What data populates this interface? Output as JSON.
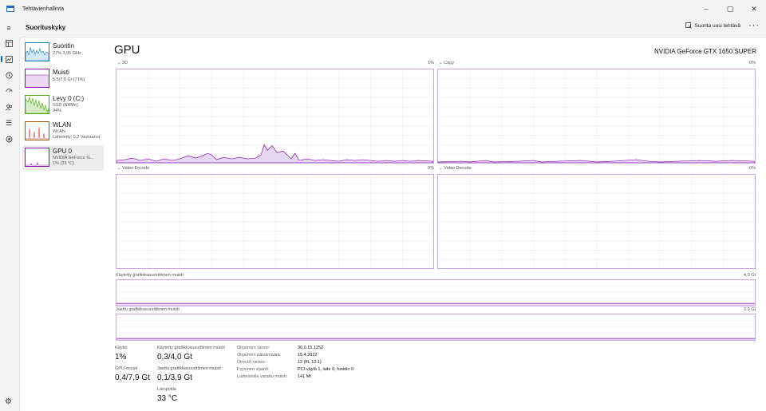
{
  "window": {
    "title": "Tehtävienhallinta",
    "minimize": "–",
    "maximize": "▢",
    "close": "✕"
  },
  "header": {
    "page_title": "Suorituskyky",
    "run_task_label": "Suorita uusi tehtävä",
    "more": "···"
  },
  "nav_icons": [
    "menu-icon",
    "processes-icon",
    "performance-icon",
    "app-history-icon",
    "startup-icon",
    "users-icon",
    "details-icon",
    "services-icon",
    "settings-icon"
  ],
  "resources": [
    {
      "name": "Suoritin",
      "sub1": "27%  3,95 GHz",
      "sub2": "",
      "color": "#117dbb"
    },
    {
      "name": "Muisti",
      "sub1": "5,5/7,8 Gt (71%)",
      "sub2": "",
      "color": "#8b12ae"
    },
    {
      "name": "Levy 0 (C:)",
      "sub1": "SSD (NVMe)",
      "sub2": "94%",
      "color": "#4da60c"
    },
    {
      "name": "WLAN",
      "sub1": "WLAN",
      "sub2": "Lähetetty: 0,2  Vastaanot",
      "color": "#a74f01"
    },
    {
      "name": "GPU 0",
      "sub1": "NVIDIA GeForce G...",
      "sub2": "1%  (33 °C)",
      "color": "#8b12ae"
    }
  ],
  "gpu": {
    "title": "GPU",
    "model": "NVIDIA GeForce GTX 1650 SUPER",
    "engines": [
      {
        "label": "3D",
        "value": "1%"
      },
      {
        "label": "Copy",
        "value": "0%"
      },
      {
        "label": "Video Encode",
        "value": "0%"
      },
      {
        "label": "Video Decode",
        "value": "0%"
      }
    ],
    "dedicated_memory": {
      "label": "Käytetty grafiikkasuorittimen muisti",
      "max": "4,0 Gt"
    },
    "shared_memory": {
      "label": "Jaettu grafiikkasuorittimen muisti",
      "max": "3,9 Gt"
    }
  },
  "stats": {
    "utilization": {
      "label": "Käyttö",
      "value": "1%"
    },
    "gpu_memory": {
      "label": "GPU-muisti",
      "value": "0,4/7,9 Gt"
    },
    "dedicated": {
      "label": "Käytetty grafiikkasuorittimen muisti",
      "value": "0,3/4,0 Gt"
    },
    "shared": {
      "label": "Jaettu grafiikkasuorittimen muisti",
      "value": "0,1/3,9 Gt"
    },
    "temperature": {
      "label": "Lämpötila",
      "value": "33 °C"
    }
  },
  "info": [
    {
      "key": "Ohjaimen versio:",
      "value": "30.0.15.1252"
    },
    {
      "key": "Ohjaimen päivämäärä:",
      "value": "15.4.2022"
    },
    {
      "key": "DirectX-versio:",
      "value": "12 (FL 12.1)"
    },
    {
      "key": "Fyysinen sijainti:",
      "value": "PCI-väylä 1, laite 0, funktio 0"
    },
    {
      "key": "Laitteistolle varattu muisti:",
      "value": "141 Mt"
    }
  ],
  "colors": {
    "accent": "#0067c0",
    "gpu_line": "#8b12ae",
    "gpu_fill": "#e6d7f4",
    "border": "#c7a8e4"
  }
}
